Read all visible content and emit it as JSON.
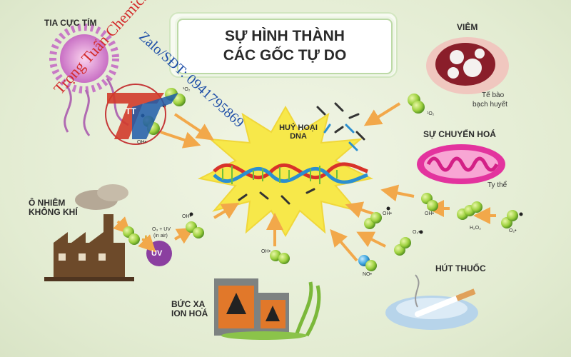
{
  "title": {
    "line1": "SỰ HÌNH THÀNH",
    "line2": "CÁC GỐC TỰ DO"
  },
  "sources": {
    "uv": "TIA CỰC TÍM",
    "inflammation": "VIÊM",
    "white_cells": [
      "Tế bào",
      "bạch huyết"
    ],
    "metabolism": "SỰ CHUYỂN HOÁ",
    "mitochondria": "Ty thể",
    "air_line1": "Ô NHIỄM",
    "air_line2": "KHÔNG KHÍ",
    "smoking": "HÚT THUỐC",
    "radiation_line1": "BỨC XẠ",
    "radiation_line2": "ION HOÁ"
  },
  "center": {
    "line1": "HUỶ HOẠI",
    "line2": "DNA"
  },
  "molecules": {
    "singlet_oxygen": "¹O₂",
    "hydroxyl": "OH•",
    "superoxide": "O₂•",
    "hydrogen_peroxide": "H₂O₂",
    "nitric_oxide": "NO•",
    "uv_badge": "UV",
    "ozone_uv": "O₃ + UV",
    "in_air": "(in air)"
  },
  "watermark": {
    "brand": "Trọng Tuấn Chemicals",
    "contact": "Zalo/SĐT: 0941795869",
    "logo": "TT"
  },
  "colors": {
    "arrow": "#f2a84a",
    "molecule": "#8cc63f",
    "blast": "#f7e84a",
    "title_border": "#bcd9a6"
  }
}
